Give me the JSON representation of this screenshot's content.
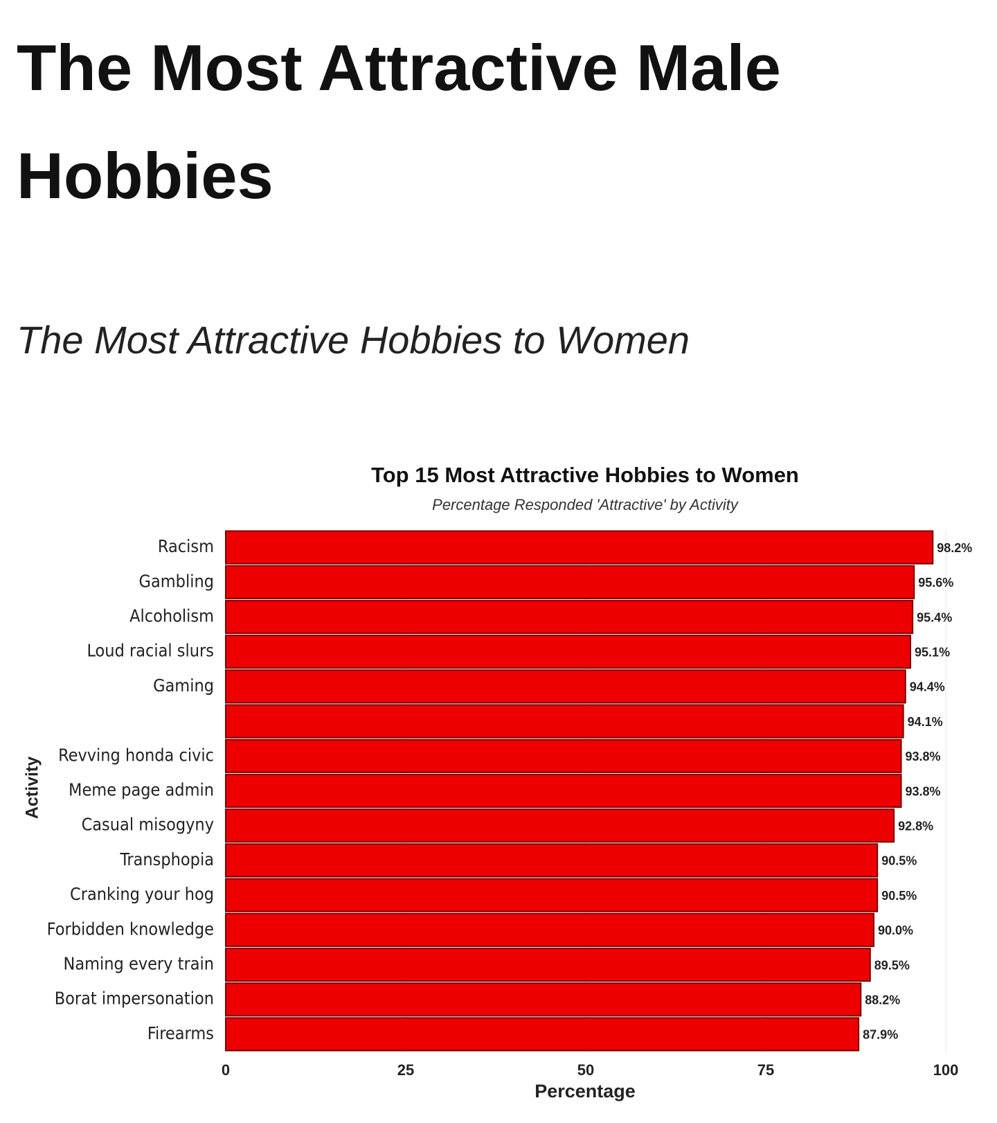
{
  "header": {
    "title": "The Most Attractive Male Hobbies",
    "subtitle": "The Most Attractive Hobbies to Women"
  },
  "chart_data": {
    "type": "hbar",
    "title": "Top 15 Most Attractive Hobbies to Women",
    "subtitle": "Percentage Responded 'Attractive' by Activity",
    "xlabel": "Percentage",
    "ylabel": "Activity",
    "categories": [
      "Racism",
      "Gambling",
      "Alcoholism",
      "Loud racial slurs",
      "Gaming",
      null,
      "Revving honda civic",
      "Meme page admin",
      "Casual misogyny",
      "Transphopia",
      "Cranking your hog",
      "Forbidden knowledge",
      "Naming every train",
      "Borat impersonation",
      "Firearms"
    ],
    "values": [
      98.2,
      95.6,
      95.4,
      95.1,
      94.4,
      94.1,
      93.8,
      93.8,
      92.8,
      90.5,
      90.5,
      90.0,
      89.5,
      88.2,
      87.9
    ],
    "value_labels": [
      "98.2%",
      "95.6%",
      "95.4%",
      "95.1%",
      "94.4%",
      "94.1%",
      "93.8%",
      "93.8%",
      "92.8%",
      "90.5%",
      "90.5%",
      "90.0%",
      "89.5%",
      "88.2%",
      "87.9%"
    ],
    "color": "#ee0000",
    "xlim": [
      0,
      100
    ],
    "xticks": [
      0,
      25,
      50,
      75,
      100
    ],
    "grid": true
  }
}
